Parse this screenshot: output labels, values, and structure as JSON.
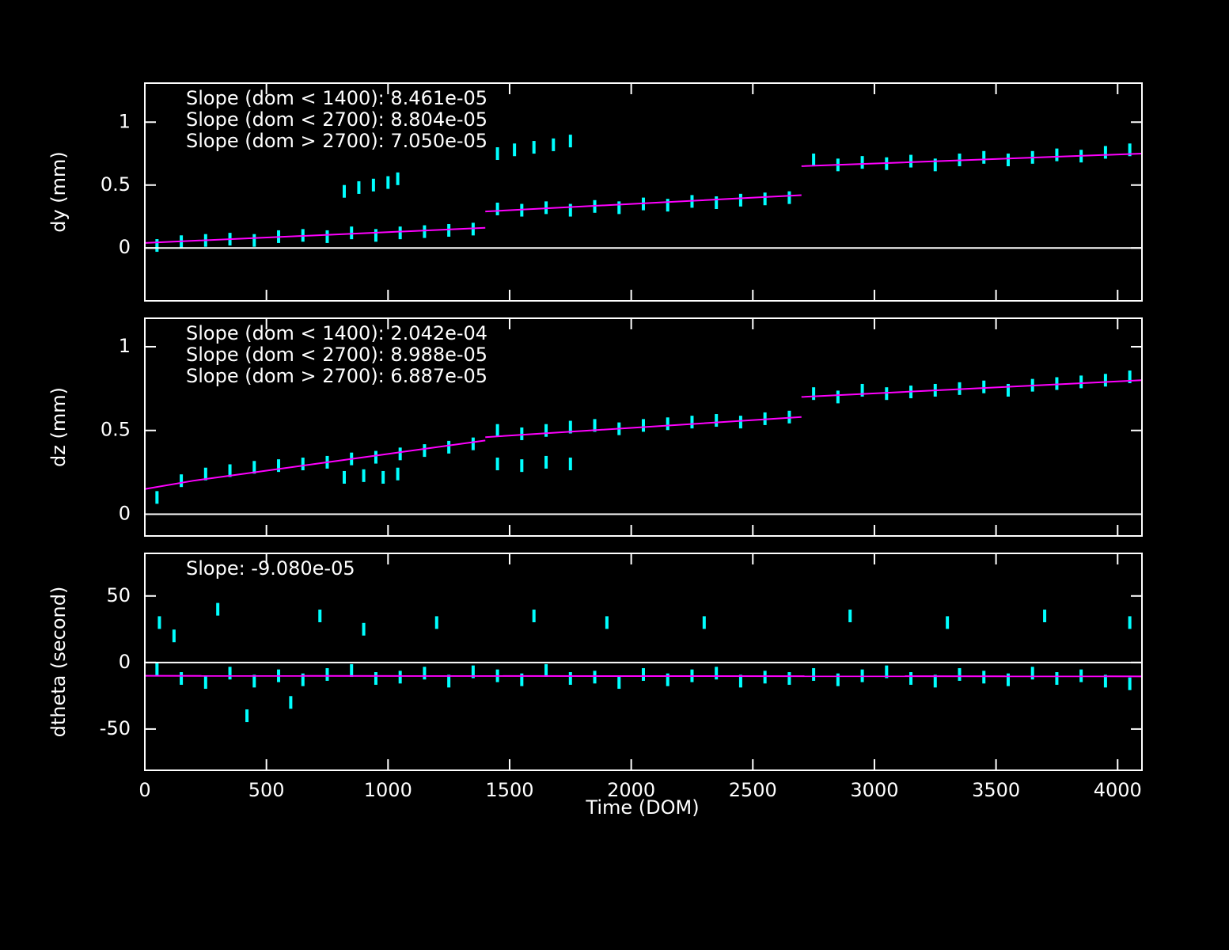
{
  "chart_data": [
    {
      "type": "scatter",
      "ylabel": "dy (mm)",
      "annotations": [
        "Slope (dom < 1400): 8.461e-05",
        "Slope (dom < 2700): 8.804e-05",
        "Slope (dom > 2700): 7.050e-05"
      ],
      "xlim": [
        0,
        4100
      ],
      "xticks": [
        0,
        500,
        1000,
        1500,
        2000,
        2500,
        3000,
        3500,
        4000
      ],
      "ylim": [
        -0.42,
        1.31
      ],
      "yticks": [
        0,
        0.5,
        1
      ],
      "zero_line": true,
      "xtick_labels": false,
      "series": [
        {
          "mode": "points",
          "color": "#00ffff",
          "x": [
            50,
            150,
            250,
            350,
            450,
            550,
            650,
            750,
            850,
            950,
            1050,
            1150,
            1250,
            1350,
            1450,
            1550,
            1650,
            1750,
            1850,
            1950,
            2050,
            2150,
            2250,
            2350,
            2450,
            2550,
            2650,
            2750,
            2850,
            2950,
            3050,
            3150,
            3250,
            3350,
            3450,
            3550,
            3650,
            3750,
            3850,
            3950,
            4050,
            820,
            880,
            940,
            1000,
            1040,
            1450,
            1520,
            1600,
            1680,
            1750
          ],
          "values": [
            0.02,
            0.05,
            0.06,
            0.07,
            0.06,
            0.09,
            0.1,
            0.09,
            0.12,
            0.1,
            0.12,
            0.13,
            0.14,
            0.15,
            0.31,
            0.3,
            0.32,
            0.3,
            0.33,
            0.32,
            0.35,
            0.34,
            0.37,
            0.36,
            0.38,
            0.39,
            0.4,
            0.7,
            0.66,
            0.68,
            0.67,
            0.69,
            0.66,
            0.7,
            0.72,
            0.7,
            0.72,
            0.74,
            0.73,
            0.76,
            0.78,
            0.45,
            0.48,
            0.5,
            0.52,
            0.55,
            0.75,
            0.78,
            0.8,
            0.82,
            0.85
          ]
        },
        {
          "mode": "line",
          "color": "#ff00ff",
          "x": [
            0,
            1400,
            null,
            1400,
            2700,
            null,
            2700,
            4100
          ],
          "values": [
            0.04,
            0.16,
            null,
            0.29,
            0.42,
            null,
            0.65,
            0.75
          ]
        }
      ]
    },
    {
      "type": "scatter",
      "ylabel": "dz (mm)",
      "annotations": [
        "Slope (dom < 1400): 2.042e-04",
        "Slope (dom < 2700): 8.988e-05",
        "Slope (dom > 2700): 6.887e-05"
      ],
      "xlim": [
        0,
        4100
      ],
      "xticks": [
        0,
        500,
        1000,
        1500,
        2000,
        2500,
        3000,
        3500,
        4000
      ],
      "ylim": [
        -0.13,
        1.17
      ],
      "yticks": [
        0,
        0.5,
        1
      ],
      "zero_line": true,
      "xtick_labels": false,
      "series": [
        {
          "mode": "points",
          "color": "#00ffff",
          "x": [
            50,
            150,
            250,
            350,
            450,
            550,
            650,
            750,
            850,
            950,
            1050,
            1150,
            1250,
            1350,
            1450,
            1550,
            1650,
            1750,
            1850,
            1950,
            2050,
            2150,
            2250,
            2350,
            2450,
            2550,
            2650,
            2750,
            2850,
            2950,
            3050,
            3150,
            3250,
            3350,
            3450,
            3550,
            3650,
            3750,
            3850,
            3950,
            4050,
            820,
            900,
            980,
            1040,
            1450,
            1550,
            1650,
            1750
          ],
          "values": [
            0.1,
            0.2,
            0.24,
            0.26,
            0.28,
            0.29,
            0.3,
            0.31,
            0.33,
            0.34,
            0.36,
            0.38,
            0.4,
            0.42,
            0.5,
            0.48,
            0.5,
            0.52,
            0.53,
            0.51,
            0.53,
            0.54,
            0.55,
            0.56,
            0.55,
            0.57,
            0.58,
            0.72,
            0.7,
            0.74,
            0.72,
            0.73,
            0.74,
            0.75,
            0.76,
            0.74,
            0.77,
            0.78,
            0.79,
            0.8,
            0.82,
            0.22,
            0.23,
            0.22,
            0.24,
            0.3,
            0.29,
            0.31,
            0.3
          ]
        },
        {
          "mode": "line",
          "color": "#ff00ff",
          "x": [
            0,
            200,
            400,
            700,
            1000,
            1400,
            null,
            1400,
            2700,
            null,
            2700,
            4100
          ],
          "values": [
            0.15,
            0.2,
            0.24,
            0.3,
            0.36,
            0.44,
            null,
            0.46,
            0.58,
            null,
            0.7,
            0.8
          ]
        }
      ]
    },
    {
      "type": "scatter",
      "ylabel": "dtheta (second)",
      "xlabel": "Time (DOM)",
      "annotations": [
        "Slope: -9.080e-05"
      ],
      "xlim": [
        0,
        4100
      ],
      "xticks": [
        0,
        500,
        1000,
        1500,
        2000,
        2500,
        3000,
        3500,
        4000
      ],
      "ylim": [
        -81,
        82
      ],
      "yticks": [
        -50,
        0,
        50
      ],
      "zero_line": true,
      "xtick_labels": true,
      "series": [
        {
          "mode": "points",
          "color": "#00ffff",
          "x": [
            50,
            150,
            250,
            350,
            450,
            550,
            650,
            750,
            850,
            950,
            1050,
            1150,
            1250,
            1350,
            1450,
            1550,
            1650,
            1750,
            1850,
            1950,
            2050,
            2150,
            2250,
            2350,
            2450,
            2550,
            2650,
            2750,
            2850,
            2950,
            3050,
            3150,
            3250,
            3350,
            3450,
            3550,
            3650,
            3750,
            3850,
            3950,
            4050,
            60,
            120,
            300,
            420,
            600,
            720,
            900,
            1200,
            1600,
            1900,
            2300,
            2900,
            3300,
            3700,
            4050
          ],
          "values": [
            -5,
            -12,
            -15,
            -8,
            -14,
            -10,
            -13,
            -9,
            -6,
            -12,
            -11,
            -8,
            -14,
            -7,
            -10,
            -13,
            -6,
            -12,
            -11,
            -15,
            -9,
            -13,
            -10,
            -8,
            -14,
            -11,
            -12,
            -9,
            -13,
            -10,
            -7,
            -12,
            -14,
            -9,
            -11,
            -13,
            -8,
            -12,
            -10,
            -14,
            -16,
            30,
            20,
            40,
            -40,
            -30,
            35,
            25,
            30,
            35,
            30,
            30,
            35,
            30,
            35,
            30
          ]
        },
        {
          "mode": "line",
          "color": "#ff00ff",
          "x": [
            0,
            4100
          ],
          "values": [
            -10,
            -10.4
          ]
        }
      ]
    }
  ]
}
